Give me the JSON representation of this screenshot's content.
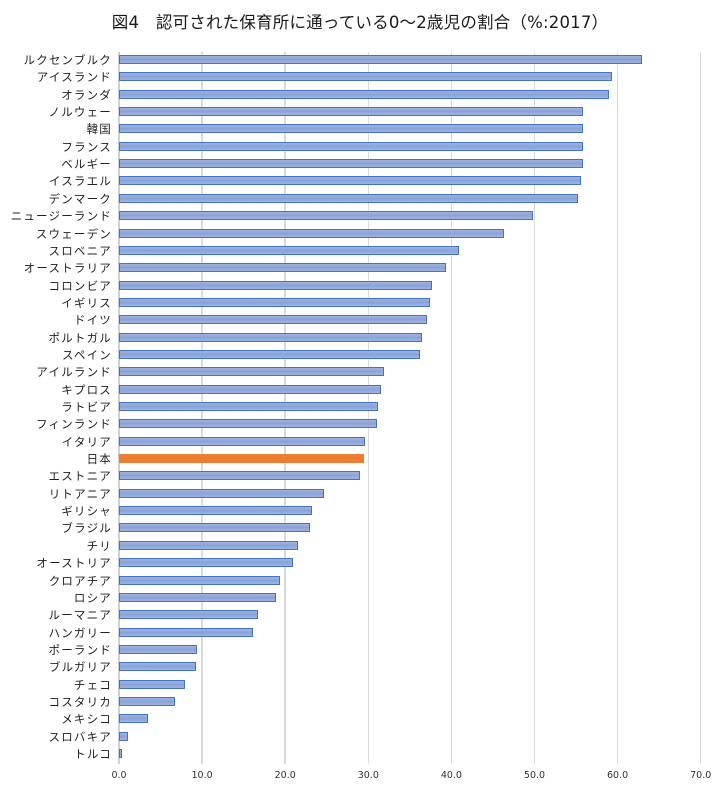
{
  "chart_data": {
    "type": "bar",
    "orientation": "horizontal",
    "title": "図4　認可された保育所に通っている0〜2歳児の割合（%:2017）",
    "xlabel": "",
    "ylabel": "",
    "xlim": [
      0,
      70
    ],
    "x_ticks": [
      "0.0",
      "10.0",
      "20.0",
      "30.0",
      "40.0",
      "50.0",
      "60.0",
      "70.0"
    ],
    "grid": true,
    "legend": null,
    "colors": {
      "default": "#8faadc",
      "default_border": "#4472c4",
      "highlight": "#ed7d31"
    },
    "highlight_category": "日本",
    "categories": [
      "ルクセンブルク",
      "アイスランド",
      "オランダ",
      "ノルウェー",
      "韓国",
      "フランス",
      "ベルギー",
      "イスラエル",
      "デンマーク",
      "ニュージーランド",
      "スウェーデン",
      "スロベニア",
      "オーストラリア",
      "コロンビア",
      "イギリス",
      "ドイツ",
      "ポルトガル",
      "スペイン",
      "アイルランド",
      "キプロス",
      "ラトビア",
      "フィンランド",
      "イタリア",
      "日本",
      "エストニア",
      "リトアニア",
      "ギリシャ",
      "ブラジル",
      "チリ",
      "オーストリア",
      "クロアチア",
      "ロシア",
      "ルーマニア",
      "ハンガリー",
      "ポーランド",
      "ブルガリア",
      "チェコ",
      "コスタリカ",
      "メキシコ",
      "スロバキア",
      "トルコ"
    ],
    "values": [
      63.0,
      59.5,
      59.1,
      56.0,
      56.0,
      56.0,
      55.9,
      55.7,
      55.3,
      49.9,
      46.5,
      41.0,
      39.5,
      37.8,
      37.6,
      37.2,
      36.6,
      36.4,
      32.0,
      31.7,
      31.3,
      31.2,
      29.7,
      29.6,
      29.1,
      24.8,
      23.4,
      23.1,
      21.7,
      21.0,
      19.5,
      19.0,
      16.8,
      16.2,
      9.5,
      9.4,
      8.1,
      6.9,
      3.6,
      1.2,
      0.3
    ]
  }
}
